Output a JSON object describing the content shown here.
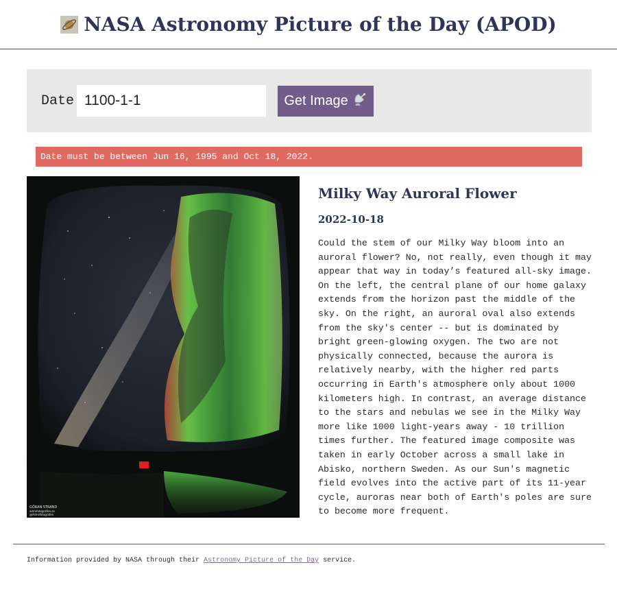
{
  "header": {
    "title": "NASA Astronomy Picture of the Day (APOD)",
    "logo_icon": "ringed-planet-icon"
  },
  "form": {
    "date_label": "Date",
    "date_value": "1100-1-1",
    "button_label": "Get Image",
    "button_icon": "satellite-dish-icon",
    "button_color": "#725c8c"
  },
  "error": {
    "message": "Date must be between Jun 16, 1995 and Oct 18, 2022.",
    "color": "#e06a62"
  },
  "apod": {
    "title": "Milky Way Auroral Flower",
    "date": "2022-10-18",
    "explanation": "Could the stem of our Milky Way bloom into an auroral flower? No, not really, even though it may appear that way in today’s featured all-sky image. On the left, the central plane of our home galaxy extends from the horizon past the middle of the sky. On the right, an auroral oval also extends from the sky's center -- but is dominated by bright green-glowing oxygen. The two are not physically connected, because the aurora is relatively nearby, with the higher red parts occurring in Earth's atmosphere only about 1000 kilometers high. In contrast, an average distance to the stars and nebulas we see in the Milky Way more like 1000 light-years away - 10 trillion times further. The featured image composite was taken in early October across a small lake in Abisko, northern Sweden. As our Sun's magnetic field evolves into the active part of its 11-year cycle, auroras near both of Earth's poles are sure to become more frequent.",
    "image_credit": [
      "GÖRAN STRAND",
      "astrofotografen.se",
      "@Astrofotografen"
    ]
  },
  "footer": {
    "text_before": "Information provided by NASA through their ",
    "link_text": "Astronomy Picture of the Day",
    "text_after": " service."
  }
}
